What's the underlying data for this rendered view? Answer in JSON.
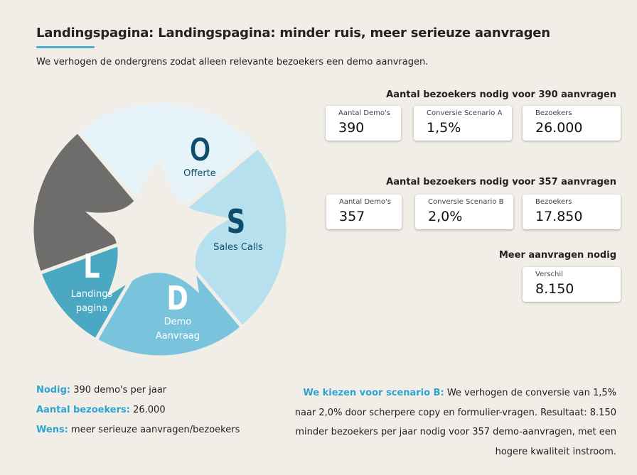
{
  "header": {
    "title": "Landingspagina: Landingspagina: minder ruis, meer serieuze aanvragen",
    "subtitle": "We verhogen de ondergrens zodat alleen relevante bezoekers een demo aanvragen."
  },
  "cycle": {
    "segments": [
      {
        "letter": "O",
        "label": "Offerte",
        "color": "#e6f3f8",
        "text_color": "#0e4d6b"
      },
      {
        "letter": "S",
        "label": "Sales Calls",
        "color": "#b6e0ee",
        "text_color": "#0e4d6b"
      },
      {
        "letter": "D",
        "label_line1": "Demo",
        "label_line2": "Aanvraag",
        "color": "#79c4dc",
        "text_color": "#ffffff"
      },
      {
        "letter": "L",
        "label_line1": "Landings",
        "label_line2": "pagina",
        "color": "#4aa8c3",
        "text_color": "#ffffff"
      },
      {
        "color": "#6e6d6b"
      }
    ]
  },
  "scenario_a": {
    "heading": "Aantal bezoekers nodig voor 390 aanvragen",
    "cards": [
      {
        "label": "Aantal Demo's",
        "value": "390"
      },
      {
        "label": "Conversie Scenario A",
        "value": "1,5%"
      },
      {
        "label": "Bezoekers",
        "value": "26.000"
      }
    ]
  },
  "scenario_b": {
    "heading": "Aantal bezoekers nodig voor 357 aanvragen",
    "cards": [
      {
        "label": "Aantal Demo's",
        "value": "357"
      },
      {
        "label": "Conversie Scenario B",
        "value": "2,0%"
      },
      {
        "label": "Bezoekers",
        "value": "17.850"
      }
    ]
  },
  "difference": {
    "heading": "Meer aanvragen nodig",
    "label": "Verschil",
    "value": "8.150"
  },
  "summary": {
    "needed_label": "Nodig:",
    "needed_value": "390 demo's per jaar",
    "visitors_label": "Aantal bezoekers:",
    "visitors_value": "26.000",
    "wish_label": "Wens:",
    "wish_value": "meer serieuze aanvragen/bezoekers",
    "choice_label": "We kiezen voor scenario B:",
    "choice_text": "We verhogen de conversie van 1,5% naar 2,0% door scherpere copy en formulier-vragen. Resultaat: 8.150 minder bezoekers per jaar nodig voor 357 demo-aanvragen, met een hogere kwaliteit instroom."
  },
  "accent": "#2fa3d1"
}
